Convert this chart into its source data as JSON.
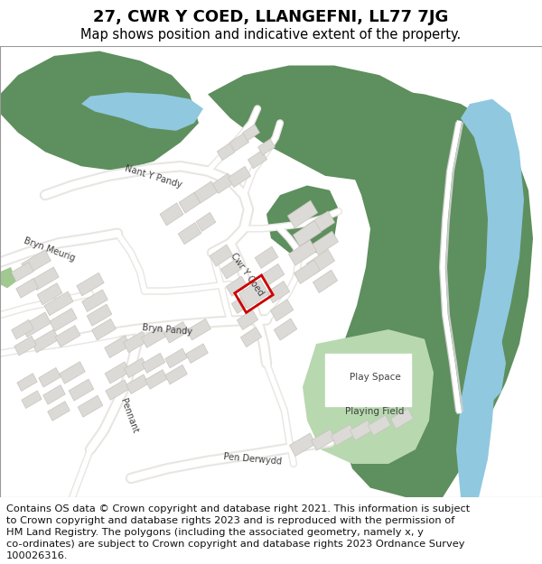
{
  "title": "27, CWR Y COED, LLANGEFNI, LL77 7JG",
  "subtitle": "Map shows position and indicative extent of the property.",
  "footer_lines": [
    "Contains OS data © Crown copyright and database right 2021. This information is subject",
    "to Crown copyright and database rights 2023 and is reproduced with the permission of",
    "HM Land Registry. The polygons (including the associated geometry, namely x, y",
    "co-ordinates) are subject to Crown copyright and database rights 2023 Ordnance Survey",
    "100026316."
  ],
  "title_fontsize": 13,
  "subtitle_fontsize": 10.5,
  "footer_fontsize": 8.2,
  "map_bg": "#ffffff",
  "green_dark": "#5e8f5e",
  "green_light": "#b8d8b0",
  "blue_water": "#90c8e0",
  "road_color": "#ffffff",
  "building_color": "#dcdad6",
  "building_edge": "#c8c4be",
  "highlight_color": "#cc0000",
  "road_outline": "#d0ccc8",
  "fig_width": 6.0,
  "fig_height": 6.25,
  "dpi": 100
}
